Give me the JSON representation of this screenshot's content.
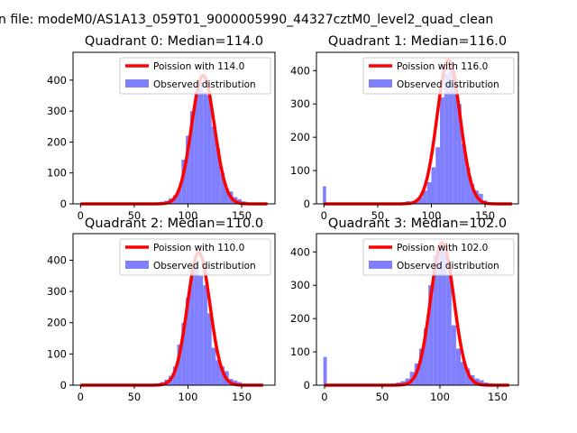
{
  "suptitle": "n file: modeM0/AS1A13_059T01_9000005990_44327cztM0_level2_quad_clean",
  "colors": {
    "poisson_line": "#ff0000",
    "observed_bars": "#8080ff"
  },
  "chart_data": [
    {
      "type": "bar",
      "title": "Quadrant 0: Median=114.0",
      "xlim": [
        -7,
        181
      ],
      "ylim": [
        0,
        490
      ],
      "xticks": [
        0,
        50,
        100,
        150
      ],
      "yticks": [
        0,
        100,
        200,
        300,
        400
      ],
      "legend": [
        "Poission with 114.0",
        "Observed distribution"
      ],
      "legend_position": "top-right",
      "bin_edges": [
        70,
        74,
        78,
        82,
        86,
        90,
        94,
        98,
        102,
        106,
        110,
        114,
        118,
        122,
        126,
        130,
        134,
        138,
        142,
        146,
        150,
        154,
        158
      ],
      "values": [
        5,
        7,
        10,
        18,
        28,
        50,
        143,
        220,
        300,
        360,
        395,
        360,
        350,
        250,
        180,
        100,
        50,
        40,
        22,
        15,
        8,
        3
      ],
      "poisson_mean": 114.0,
      "poisson_peak": 415,
      "curve_xrange": [
        0,
        174
      ]
    },
    {
      "type": "bar",
      "title": "Quadrant 1: Median=116.0",
      "xlim": [
        -7,
        181
      ],
      "ylim": [
        0,
        455
      ],
      "xticks": [
        0,
        50,
        100,
        150
      ],
      "yticks": [
        0,
        100,
        200,
        300,
        400
      ],
      "legend": [
        "Poission with 116.0",
        "Observed distribution"
      ],
      "legend_position": "top-right",
      "bin_edges": [
        -1,
        2,
        72,
        76,
        80,
        84,
        88,
        92,
        96,
        100,
        104,
        108,
        112,
        116,
        120,
        124,
        128,
        132,
        136,
        140,
        144,
        148,
        152,
        156,
        160
      ],
      "values": [
        53,
        0,
        5,
        8,
        7,
        12,
        20,
        40,
        65,
        110,
        170,
        320,
        390,
        410,
        380,
        300,
        180,
        110,
        60,
        40,
        30,
        10,
        5,
        3
      ],
      "poisson_mean": 116.0,
      "poisson_peak": 432,
      "curve_xrange": [
        0,
        175
      ]
    },
    {
      "type": "bar",
      "title": "Quadrant 2: Median=110.0",
      "xlim": [
        -7,
        181
      ],
      "ylim": [
        0,
        485
      ],
      "xticks": [
        0,
        50,
        100,
        150
      ],
      "yticks": [
        0,
        100,
        200,
        300,
        400
      ],
      "legend": [
        "Poission with 110.0",
        "Observed distribution"
      ],
      "legend_position": "top-right",
      "bin_edges": [
        66,
        70,
        74,
        78,
        82,
        86,
        90,
        94,
        98,
        102,
        106,
        110,
        114,
        118,
        122,
        126,
        130,
        134,
        138,
        142,
        146,
        150
      ],
      "values": [
        3,
        5,
        10,
        18,
        30,
        60,
        130,
        200,
        280,
        360,
        395,
        350,
        320,
        230,
        120,
        80,
        60,
        45,
        20,
        15,
        10
      ],
      "poisson_mean": 110.0,
      "poisson_peak": 425,
      "curve_xrange": [
        0,
        170
      ]
    },
    {
      "type": "bar",
      "title": "Quadrant 3: Median=102.0",
      "xlim": [
        -7,
        168
      ],
      "ylim": [
        0,
        455
      ],
      "xticks": [
        0,
        50,
        100,
        150
      ],
      "yticks": [
        0,
        100,
        200,
        300,
        400
      ],
      "legend": [
        "Poission with 102.0",
        "Observed distribution"
      ],
      "legend_position": "top-right",
      "bin_edges": [
        -1,
        2,
        58,
        62,
        66,
        70,
        74,
        78,
        82,
        86,
        90,
        94,
        98,
        102,
        106,
        110,
        114,
        118,
        122,
        126,
        130,
        134,
        138,
        142,
        146
      ],
      "values": [
        85,
        0,
        5,
        8,
        12,
        20,
        40,
        65,
        110,
        170,
        300,
        390,
        420,
        400,
        330,
        180,
        110,
        70,
        50,
        30,
        20,
        15,
        8,
        5
      ],
      "poisson_mean": 102.0,
      "poisson_peak": 428,
      "curve_xrange": [
        0,
        160
      ]
    }
  ]
}
